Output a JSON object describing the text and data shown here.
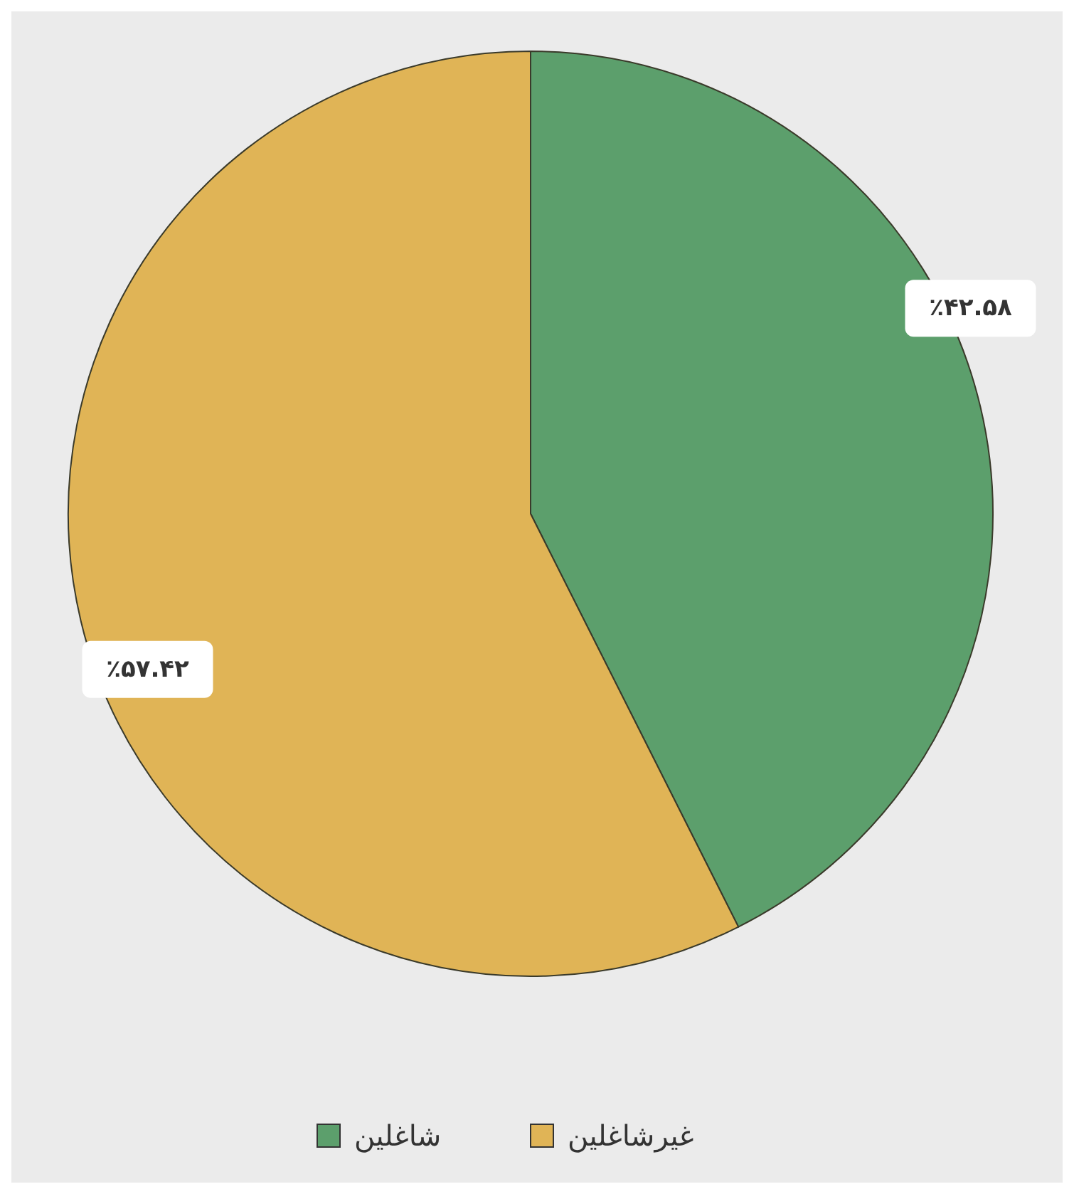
{
  "chart_data": {
    "type": "pie",
    "categories": [
      "شاغلین",
      "غیرشاغلین"
    ],
    "values": [
      42.58,
      57.42
    ],
    "colors": [
      "#5c9f6c",
      "#e0b456"
    ],
    "value_labels": [
      "٪۴۲.۵۸",
      "٪۵۷.۴۲"
    ],
    "legend": "bottom"
  }
}
